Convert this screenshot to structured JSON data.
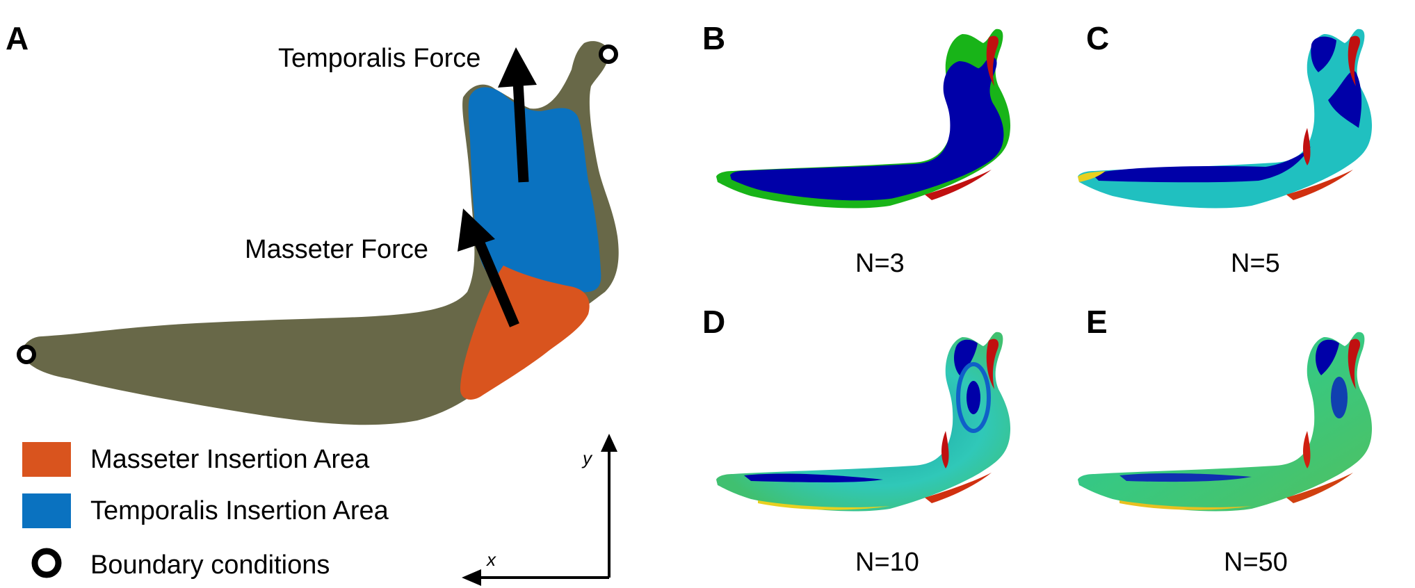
{
  "panels": {
    "a": {
      "letter": "A"
    },
    "b": {
      "letter": "B",
      "caption": "N=3"
    },
    "c": {
      "letter": "C",
      "caption": "N=5"
    },
    "d": {
      "letter": "D",
      "caption": "N=10"
    },
    "e": {
      "letter": "E",
      "caption": "N=50"
    }
  },
  "forces": {
    "temporalis": "Temporalis Force",
    "masseter": "Masseter Force"
  },
  "legend": {
    "masseter": {
      "label": "Masseter Insertion Area",
      "color": "#d9541e"
    },
    "temporalis": {
      "label": "Temporalis Insertion Area",
      "color": "#0a72c0"
    },
    "boundary": {
      "label": "Boundary conditions"
    }
  },
  "axes": {
    "x": "x",
    "y": "y"
  },
  "colors": {
    "bone": "#686848",
    "stress_low": "#0000a8",
    "stress_mid": "#18b418",
    "stress_high": "#c01010",
    "cyan": "#20c0c0",
    "yellow": "#e8d020"
  }
}
